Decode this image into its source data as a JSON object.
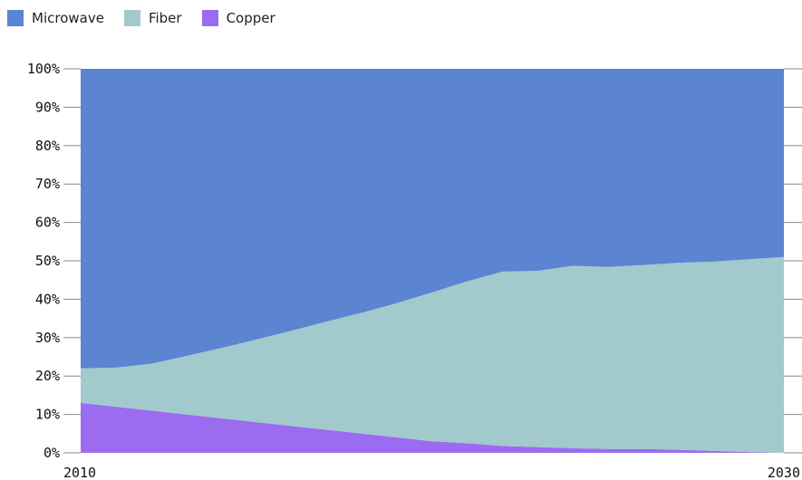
{
  "chart_data": {
    "type": "area",
    "stacked": true,
    "normalized": true,
    "x": [
      2010,
      2011,
      2012,
      2013,
      2014,
      2015,
      2016,
      2017,
      2018,
      2019,
      2020,
      2021,
      2022,
      2023,
      2024,
      2025,
      2026,
      2027,
      2028,
      2029,
      2030
    ],
    "series": [
      {
        "name": "Copper",
        "color": "#9b6cf0",
        "values": [
          13,
          12,
          11,
          10,
          9,
          8,
          7,
          6,
          5,
          4,
          3,
          2.5,
          1.8,
          1.5,
          1.2,
          1.0,
          1.0,
          0.8,
          0.5,
          0.2,
          0
        ]
      },
      {
        "name": "Fiber",
        "color": "#a2c9cb",
        "values": [
          9,
          10.2,
          12.2,
          15.2,
          18.3,
          21.5,
          24.8,
          28.2,
          31.5,
          35,
          38.8,
          42.2,
          45.4,
          45.9,
          47.5,
          47.4,
          47.9,
          48.7,
          49.3,
          50.2,
          51
        ]
      },
      {
        "name": "Microwave",
        "color": "#5b84d1",
        "values": [
          78,
          77.8,
          76.8,
          74.8,
          72.7,
          70.5,
          68.2,
          65.8,
          63.5,
          61,
          58.2,
          55.3,
          52.8,
          52.6,
          51.3,
          51.6,
          51.1,
          50.5,
          50.2,
          49.6,
          49
        ]
      }
    ],
    "legend_order": [
      "Microwave",
      "Fiber",
      "Copper"
    ],
    "legend_position": "top-left",
    "ylim": [
      0,
      100
    ],
    "y_ticks": [
      "0%",
      "10%",
      "20%",
      "30%",
      "40%",
      "50%",
      "60%",
      "70%",
      "80%",
      "90%",
      "100%"
    ],
    "x_ticks": [
      "2010",
      "2030"
    ],
    "grid": "y-ticks-outside-plot"
  }
}
